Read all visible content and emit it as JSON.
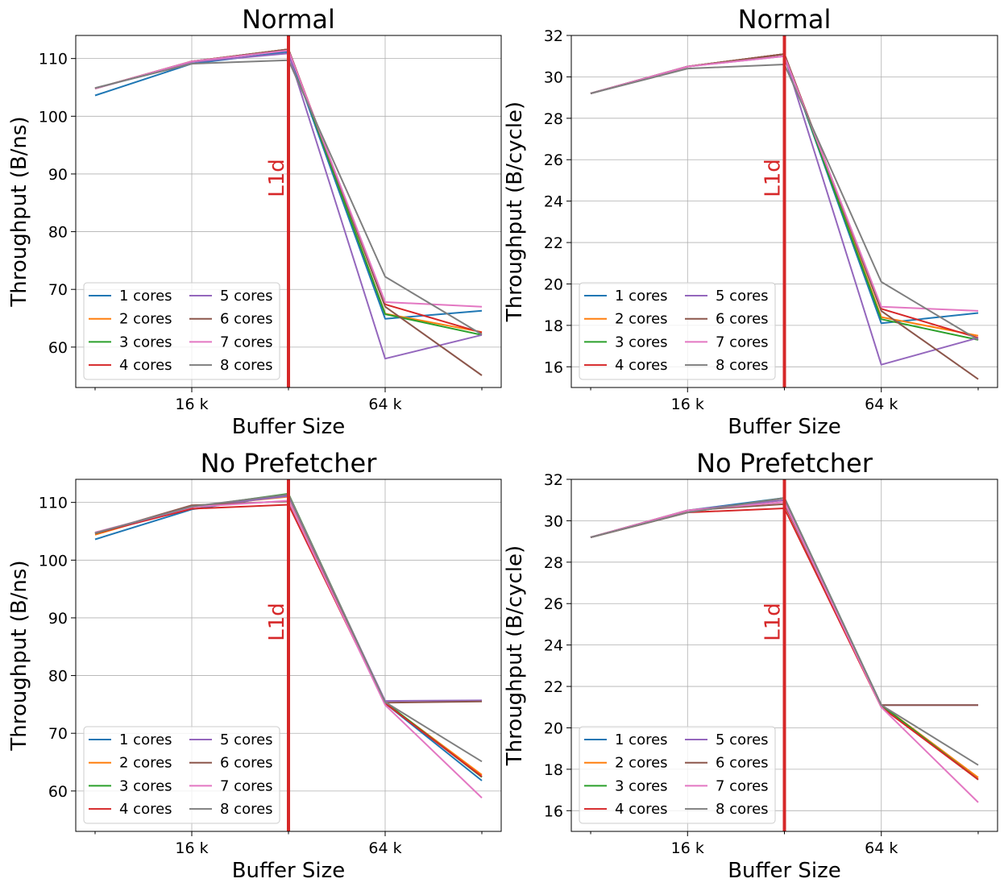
{
  "chart_data": [
    {
      "type": "line",
      "title": "Normal",
      "xlabel": "Buffer Size",
      "ylabel": "Throughput (B/ns)",
      "x": [
        8,
        16,
        32,
        64,
        128
      ],
      "x_scale": "log2",
      "xticks": [
        {
          "value": 16,
          "label": "16 k"
        },
        {
          "value": 64,
          "label": "64 k"
        }
      ],
      "minor_xticks": [
        8,
        32,
        128
      ],
      "ylim": [
        53,
        114
      ],
      "yticks": [
        60,
        70,
        80,
        90,
        100,
        110
      ],
      "grid": true,
      "legend": {
        "placement": "lower-left",
        "columns": 2
      },
      "vline": {
        "x": 32,
        "label": "L1d",
        "color": "#d62728"
      },
      "series": [
        {
          "name": "1 cores",
          "color": "#1f77b4",
          "values": [
            103.6,
            109.1,
            111.2,
            64.9,
            66.3
          ]
        },
        {
          "name": "2 cores",
          "color": "#ff7f0e",
          "values": [
            104.8,
            109.5,
            111.6,
            65.8,
            62.6
          ]
        },
        {
          "name": "3 cores",
          "color": "#2ca02c",
          "values": [
            104.8,
            109.5,
            111.6,
            65.7,
            62.1
          ]
        },
        {
          "name": "4 cores",
          "color": "#d62728",
          "values": [
            104.8,
            109.5,
            111.6,
            67.4,
            62.5
          ]
        },
        {
          "name": "5 cores",
          "color": "#9467bd",
          "values": [
            104.8,
            109.4,
            110.9,
            58.0,
            62.1
          ]
        },
        {
          "name": "6 cores",
          "color": "#8c564b",
          "values": [
            104.8,
            109.5,
            111.6,
            67.0,
            55.1
          ]
        },
        {
          "name": "7 cores",
          "color": "#e377c2",
          "values": [
            104.8,
            109.5,
            111.4,
            67.8,
            67.0
          ]
        },
        {
          "name": "8 cores",
          "color": "#7f7f7f",
          "values": [
            104.9,
            109.1,
            109.7,
            72.2,
            62.2
          ]
        }
      ]
    },
    {
      "type": "line",
      "title": "Normal",
      "xlabel": "Buffer Size",
      "ylabel": "Throughput (B/cycle)",
      "x": [
        8,
        16,
        32,
        64,
        128
      ],
      "x_scale": "log2",
      "xticks": [
        {
          "value": 16,
          "label": "16 k"
        },
        {
          "value": 64,
          "label": "64 k"
        }
      ],
      "minor_xticks": [
        8,
        32,
        128
      ],
      "ylim": [
        15,
        32
      ],
      "yticks": [
        16,
        18,
        20,
        22,
        24,
        26,
        28,
        30,
        32
      ],
      "grid": true,
      "legend": {
        "placement": "lower-left",
        "columns": 2
      },
      "vline": {
        "x": 32,
        "label": "L1d",
        "color": "#d62728"
      },
      "series": [
        {
          "name": "1 cores",
          "color": "#1f77b4",
          "values": [
            29.2,
            30.5,
            31.1,
            18.1,
            18.6
          ]
        },
        {
          "name": "2 cores",
          "color": "#ff7f0e",
          "values": [
            29.2,
            30.5,
            31.1,
            18.4,
            17.5
          ]
        },
        {
          "name": "3 cores",
          "color": "#2ca02c",
          "values": [
            29.2,
            30.5,
            31.1,
            18.3,
            17.3
          ]
        },
        {
          "name": "4 cores",
          "color": "#d62728",
          "values": [
            29.2,
            30.5,
            31.1,
            18.8,
            17.4
          ]
        },
        {
          "name": "5 cores",
          "color": "#9467bd",
          "values": [
            29.2,
            30.5,
            31.0,
            16.1,
            17.4
          ]
        },
        {
          "name": "6 cores",
          "color": "#8c564b",
          "values": [
            29.2,
            30.5,
            31.1,
            18.7,
            15.4
          ]
        },
        {
          "name": "7 cores",
          "color": "#e377c2",
          "values": [
            29.2,
            30.5,
            31.0,
            18.9,
            18.7
          ]
        },
        {
          "name": "8 cores",
          "color": "#7f7f7f",
          "values": [
            29.2,
            30.4,
            30.6,
            20.1,
            17.3
          ]
        }
      ]
    },
    {
      "type": "line",
      "title": "No Prefetcher",
      "xlabel": "Buffer Size",
      "ylabel": "Throughput (B/ns)",
      "x": [
        8,
        16,
        32,
        64,
        128
      ],
      "x_scale": "log2",
      "xticks": [
        {
          "value": 16,
          "label": "16 k"
        },
        {
          "value": 64,
          "label": "64 k"
        }
      ],
      "minor_xticks": [
        8,
        32,
        128
      ],
      "ylim": [
        53,
        114
      ],
      "yticks": [
        60,
        70,
        80,
        90,
        100,
        110
      ],
      "grid": true,
      "legend": {
        "placement": "lower-left",
        "columns": 2
      },
      "vline": {
        "x": 32,
        "label": "L1d",
        "color": "#d62728"
      },
      "series": [
        {
          "name": "1 cores",
          "color": "#1f77b4",
          "values": [
            103.6,
            108.8,
            111.3,
            75.2,
            61.8
          ]
        },
        {
          "name": "2 cores",
          "color": "#ff7f0e",
          "values": [
            104.4,
            109.3,
            111.0,
            75.3,
            62.8
          ]
        },
        {
          "name": "3 cores",
          "color": "#2ca02c",
          "values": [
            104.6,
            109.2,
            111.5,
            75.4,
            62.4
          ]
        },
        {
          "name": "4 cores",
          "color": "#d62728",
          "values": [
            104.6,
            108.9,
            109.6,
            75.2,
            62.5
          ]
        },
        {
          "name": "5 cores",
          "color": "#9467bd",
          "values": [
            104.7,
            109.2,
            111.1,
            75.6,
            75.7
          ]
        },
        {
          "name": "6 cores",
          "color": "#8c564b",
          "values": [
            104.6,
            109.5,
            110.2,
            75.3,
            75.5
          ]
        },
        {
          "name": "7 cores",
          "color": "#e377c2",
          "values": [
            104.8,
            109.2,
            110.3,
            74.9,
            58.8
          ]
        },
        {
          "name": "8 cores",
          "color": "#7f7f7f",
          "values": [
            104.7,
            109.3,
            111.4,
            75.4,
            65.1
          ]
        }
      ]
    },
    {
      "type": "line",
      "title": "No Prefetcher",
      "xlabel": "Buffer Size",
      "ylabel": "Throughput (B/cycle)",
      "x": [
        8,
        16,
        32,
        64,
        128
      ],
      "x_scale": "log2",
      "xticks": [
        {
          "value": 16,
          "label": "16 k"
        },
        {
          "value": 64,
          "label": "64 k"
        }
      ],
      "minor_xticks": [
        8,
        32,
        128
      ],
      "ylim": [
        15,
        32
      ],
      "yticks": [
        16,
        18,
        20,
        22,
        24,
        26,
        28,
        30,
        32
      ],
      "grid": true,
      "legend": {
        "placement": "lower-left",
        "columns": 2
      },
      "vline": {
        "x": 32,
        "label": "L1d",
        "color": "#d62728"
      },
      "series": [
        {
          "name": "1 cores",
          "color": "#1f77b4",
          "values": [
            29.2,
            30.5,
            31.1,
            21.1,
            17.5
          ]
        },
        {
          "name": "2 cores",
          "color": "#ff7f0e",
          "values": [
            29.2,
            30.5,
            31.0,
            21.1,
            17.6
          ]
        },
        {
          "name": "3 cores",
          "color": "#2ca02c",
          "values": [
            29.2,
            30.4,
            31.1,
            21.1,
            17.5
          ]
        },
        {
          "name": "4 cores",
          "color": "#d62728",
          "values": [
            29.2,
            30.4,
            30.6,
            21.0,
            17.5
          ]
        },
        {
          "name": "5 cores",
          "color": "#9467bd",
          "values": [
            29.2,
            30.5,
            31.0,
            21.1,
            21.1
          ]
        },
        {
          "name": "6 cores",
          "color": "#8c564b",
          "values": [
            29.2,
            30.5,
            30.8,
            21.1,
            21.1
          ]
        },
        {
          "name": "7 cores",
          "color": "#e377c2",
          "values": [
            29.2,
            30.5,
            30.9,
            21.0,
            16.4
          ]
        },
        {
          "name": "8 cores",
          "color": "#7f7f7f",
          "values": [
            29.2,
            30.4,
            31.1,
            21.1,
            18.2
          ]
        }
      ]
    }
  ]
}
